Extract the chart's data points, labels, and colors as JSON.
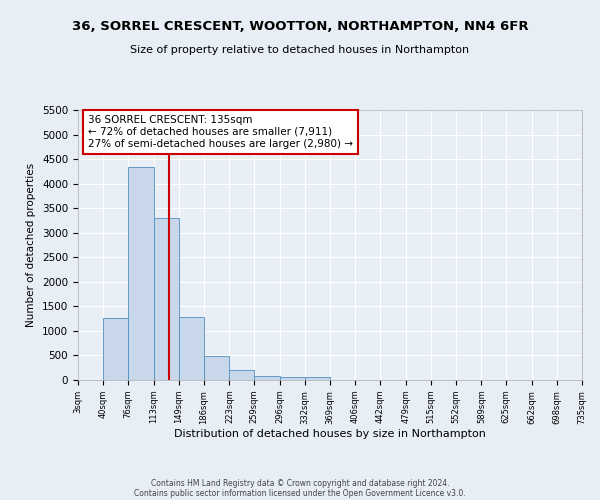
{
  "title": "36, SORREL CRESCENT, WOOTTON, NORTHAMPTON, NN4 6FR",
  "subtitle": "Size of property relative to detached houses in Northampton",
  "xlabel": "Distribution of detached houses by size in Northampton",
  "ylabel": "Number of detached properties",
  "footnote1": "Contains HM Land Registry data © Crown copyright and database right 2024.",
  "footnote2": "Contains public sector information licensed under the Open Government Licence v3.0.",
  "bin_labels": [
    "3sqm",
    "40sqm",
    "76sqm",
    "113sqm",
    "149sqm",
    "186sqm",
    "223sqm",
    "259sqm",
    "296sqm",
    "332sqm",
    "369sqm",
    "406sqm",
    "442sqm",
    "479sqm",
    "515sqm",
    "552sqm",
    "589sqm",
    "625sqm",
    "662sqm",
    "698sqm",
    "735sqm"
  ],
  "bar_values": [
    0,
    1270,
    4330,
    3300,
    1280,
    490,
    210,
    90,
    60,
    60,
    0,
    0,
    0,
    0,
    0,
    0,
    0,
    0,
    0,
    0
  ],
  "bar_color": "#c8d8ea",
  "bar_edge_color": "#5090c0",
  "vline_x": 135,
  "ylim": [
    0,
    5500
  ],
  "yticks": [
    0,
    500,
    1000,
    1500,
    2000,
    2500,
    3000,
    3500,
    4000,
    4500,
    5000,
    5500
  ],
  "annotation_line1": "36 SORREL CRESCENT: 135sqm",
  "annotation_line2": "← 72% of detached houses are smaller (7,911)",
  "annotation_line3": "27% of semi-detached houses are larger (2,980) →",
  "annotation_box_color": "#ffffff",
  "annotation_box_edge_color": "#cc0000",
  "annotation_vline_color": "#cc0000",
  "background_color": "#e8eef5",
  "plot_bg_color": "#e8eef5",
  "bin_edges": [
    3,
    40,
    76,
    113,
    149,
    186,
    223,
    259,
    296,
    332,
    369,
    406,
    442,
    479,
    515,
    552,
    589,
    625,
    662,
    698,
    735
  ],
  "grid_color": "#ffffff",
  "title_fontsize": 9.5,
  "subtitle_fontsize": 8.0,
  "xlabel_fontsize": 8.0,
  "ylabel_fontsize": 7.5,
  "xtick_fontsize": 6.0,
  "ytick_fontsize": 7.5,
  "annotation_fontsize": 7.5,
  "footnote_fontsize": 5.5
}
